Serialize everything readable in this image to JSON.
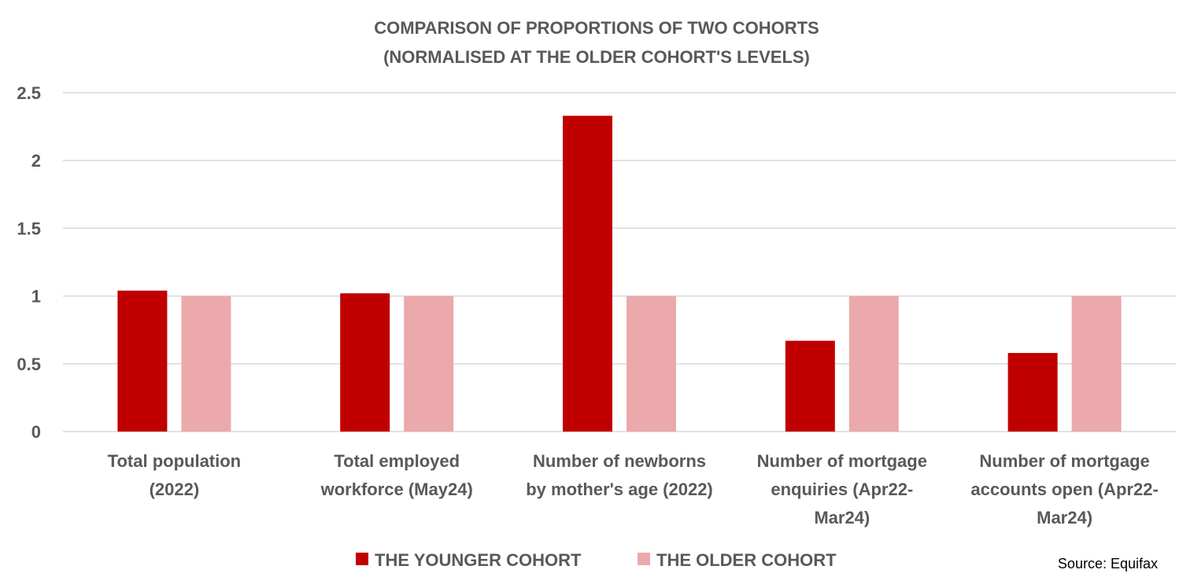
{
  "chart_data": {
    "type": "bar",
    "title": "COMPARISON OF PROPORTIONS OF TWO COHORTS",
    "subtitle": "(NORMALISED AT THE OLDER COHORT'S LEVELS)",
    "categories": [
      [
        "Total population",
        "(2022)"
      ],
      [
        "Total employed",
        "workforce (May24)"
      ],
      [
        "Number of newborns",
        "by mother's age (2022)"
      ],
      [
        "Number of mortgage",
        "enquiries (Apr22-",
        "Mar24)"
      ],
      [
        "Number of mortgage",
        "accounts open (Apr22-",
        "Mar24)"
      ]
    ],
    "series": [
      {
        "name": "THE YOUNGER COHORT",
        "color": "#c00000",
        "values": [
          1.04,
          1.02,
          2.33,
          0.67,
          0.58
        ]
      },
      {
        "name": "THE OLDER COHORT",
        "color": "#eba9ab",
        "values": [
          1.0,
          1.0,
          1.0,
          1.0,
          1.0
        ]
      }
    ],
    "ylim": [
      0,
      2.5
    ],
    "yticks": [
      "0",
      "0.5",
      "1",
      "1.5",
      "2",
      "2.5"
    ],
    "ytick_values": [
      0,
      0.5,
      1,
      1.5,
      2,
      2.5
    ],
    "grid": true,
    "legend": "bottom-center",
    "source": "Source: Equifax"
  }
}
